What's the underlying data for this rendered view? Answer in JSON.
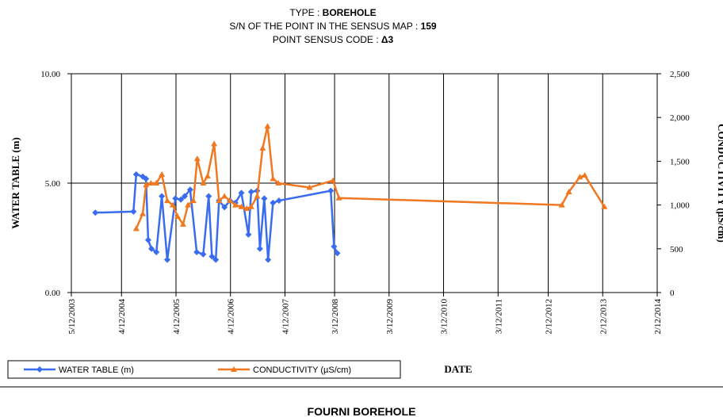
{
  "chart_data": {
    "type": "line",
    "title_lines": [
      {
        "label": "TYPE :",
        "value": "BOREHOLE"
      },
      {
        "label": "S/N OF THE POINT IN THE SENSUS MAP :",
        "value": "159"
      },
      {
        "label": "POINT SENSUS CODE :",
        "value": "Δ3"
      }
    ],
    "ylabel": "WATER TABLE (m)",
    "y2label": "CONDUCTIVITY (µS/cm)",
    "xlabel": "DATE",
    "footer": "FOURNI BOREHOLE",
    "xlim": [
      2003.36,
      2014.11
    ],
    "xticks": [
      {
        "value": 2003.36,
        "label": "5/12/2003"
      },
      {
        "value": 2004.28,
        "label": "4/12/2004"
      },
      {
        "value": 2005.28,
        "label": "4/12/2005"
      },
      {
        "value": 2006.28,
        "label": "4/12/2006"
      },
      {
        "value": 2007.28,
        "label": "4/12/2007"
      },
      {
        "value": 2008.19,
        "label": "3/12/2008"
      },
      {
        "value": 2009.19,
        "label": "3/12/2009"
      },
      {
        "value": 2010.19,
        "label": "3/12/2010"
      },
      {
        "value": 2011.19,
        "label": "3/12/2011"
      },
      {
        "value": 2012.11,
        "label": "2/12/2012"
      },
      {
        "value": 2013.11,
        "label": "2/12/2013"
      },
      {
        "value": 2014.11,
        "label": "2/12/2014"
      }
    ],
    "ylim": [
      0,
      10
    ],
    "yticks": [
      {
        "value": 0,
        "label": "0.00"
      },
      {
        "value": 5,
        "label": "5.00"
      },
      {
        "value": 10,
        "label": "10.00"
      }
    ],
    "y2lim": [
      0,
      2500
    ],
    "y2ticks": [
      0,
      500,
      {
        "value": 1000,
        "label": "1,000"
      },
      {
        "value": 1500,
        "label": "1,500"
      },
      {
        "value": 2000,
        "label": "2,000"
      },
      {
        "value": 2500,
        "label": "2,500"
      }
    ],
    "grid": true,
    "series": [
      {
        "name": "WATER TABLE (m)",
        "color": "#3a6cf0",
        "marker": "diamond",
        "x": [
          2003.8,
          2004.5,
          2004.55,
          2004.67,
          2004.73,
          2004.77,
          2004.83,
          2004.92,
          2005.02,
          2005.12,
          2005.27,
          2005.37,
          2005.44,
          2005.54,
          2005.66,
          2005.78,
          2005.88,
          2005.94,
          2006.01,
          2006.07,
          2006.17,
          2006.27,
          2006.37,
          2006.48,
          2006.61,
          2006.66,
          2006.77,
          2006.82,
          2006.9,
          2006.97,
          2007.06,
          2007.17,
          2008.12,
          2008.18,
          2008.24
        ],
        "values": [
          3.65,
          3.7,
          5.4,
          5.3,
          5.2,
          2.4,
          2.0,
          1.85,
          4.4,
          1.5,
          4.3,
          4.25,
          4.4,
          4.7,
          1.85,
          1.75,
          4.4,
          1.65,
          1.5,
          4.2,
          3.9,
          4.2,
          4.1,
          4.55,
          2.65,
          4.6,
          4.65,
          2.0,
          4.3,
          1.5,
          4.1,
          4.2,
          4.65,
          2.1,
          1.8
        ]
      },
      {
        "name": "CONDUCTIVITY (µS/cm)",
        "color": "#f07820",
        "marker": "triangle",
        "axis": "y2",
        "x": [
          2004.55,
          2004.67,
          2004.73,
          2004.82,
          2004.92,
          2005.02,
          2005.12,
          2005.22,
          2005.31,
          2005.41,
          2005.5,
          2005.6,
          2005.67,
          2005.78,
          2005.86,
          2005.98,
          2006.07,
          2006.17,
          2006.27,
          2006.37,
          2006.48,
          2006.58,
          2006.66,
          2006.77,
          2006.87,
          2006.96,
          2007.06,
          2007.16,
          2007.73,
          2008.16,
          2008.27,
          2012.36,
          2012.49,
          2012.69,
          2012.78,
          2013.14
        ],
        "values": [
          730,
          900,
          1230,
          1250,
          1250,
          1350,
          1050,
          1000,
          870,
          780,
          1000,
          1050,
          1530,
          1250,
          1330,
          1700,
          1050,
          1100,
          1050,
          1000,
          980,
          960,
          980,
          1100,
          1650,
          1900,
          1300,
          1250,
          1200,
          1280,
          1080,
          1000,
          1150,
          1320,
          1340,
          980
        ]
      }
    ]
  }
}
